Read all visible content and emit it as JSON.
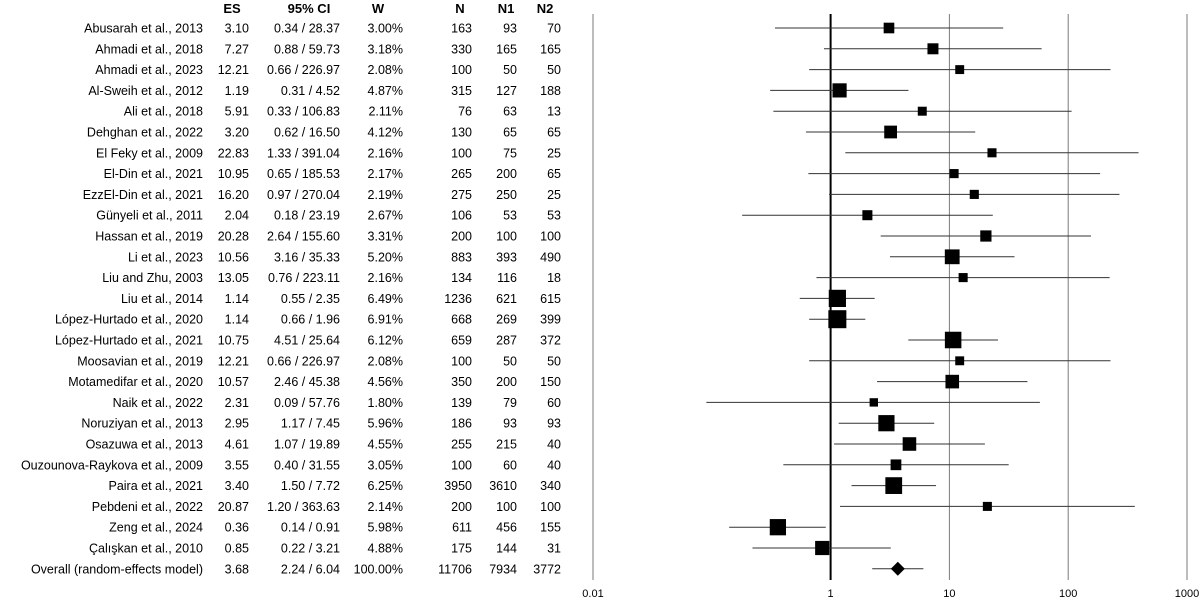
{
  "columns": {
    "es": "ES",
    "ci": "95% CI",
    "w": "W",
    "n": "N",
    "n1": "N1",
    "n2": "N2"
  },
  "chart_data": {
    "type": "forest",
    "x_scale": "log",
    "xlim": [
      0.01,
      1000
    ],
    "x_ticks": [
      0.01,
      1,
      10,
      100,
      1000
    ],
    "x_tick_labels": [
      "0.01",
      "1",
      "10",
      "100",
      "1000"
    ],
    "reference_line": 1,
    "grid": true,
    "studies": [
      {
        "label": "Abusarah et al., 2013",
        "es": 3.1,
        "lo": 0.34,
        "hi": 28.37,
        "es_text": "3.10",
        "ci_text": "0.34 / 28.37",
        "w": "3.00%",
        "n": "163",
        "n1": "93",
        "n2": "70"
      },
      {
        "label": "Ahmadi et al., 2018",
        "es": 7.27,
        "lo": 0.88,
        "hi": 59.73,
        "es_text": "7.27",
        "ci_text": "0.88 / 59.73",
        "w": "3.18%",
        "n": "330",
        "n1": "165",
        "n2": "165"
      },
      {
        "label": "Ahmadi et al., 2023",
        "es": 12.21,
        "lo": 0.66,
        "hi": 226.97,
        "es_text": "12.21",
        "ci_text": "0.66 / 226.97",
        "w": "2.08%",
        "n": "100",
        "n1": "50",
        "n2": "50"
      },
      {
        "label": "Al-Sweih et al., 2012",
        "es": 1.19,
        "lo": 0.31,
        "hi": 4.52,
        "es_text": "1.19",
        "ci_text": "0.31 / 4.52",
        "w": "4.87%",
        "n": "315",
        "n1": "127",
        "n2": "188"
      },
      {
        "label": "Ali et al., 2018",
        "es": 5.91,
        "lo": 0.33,
        "hi": 106.83,
        "es_text": "5.91",
        "ci_text": "0.33 / 106.83",
        "w": "2.11%",
        "n": "76",
        "n1": "63",
        "n2": "13"
      },
      {
        "label": "Dehghan et al., 2022",
        "es": 3.2,
        "lo": 0.62,
        "hi": 16.5,
        "es_text": "3.20",
        "ci_text": "0.62 / 16.50",
        "w": "4.12%",
        "n": "130",
        "n1": "65",
        "n2": "65"
      },
      {
        "label": "El Feky et al., 2009",
        "es": 22.83,
        "lo": 1.33,
        "hi": 391.04,
        "es_text": "22.83",
        "ci_text": "1.33 / 391.04",
        "w": "2.16%",
        "n": "100",
        "n1": "75",
        "n2": "25"
      },
      {
        "label": "El-Din et al., 2021",
        "es": 10.95,
        "lo": 0.65,
        "hi": 185.53,
        "es_text": "10.95",
        "ci_text": "0.65 / 185.53",
        "w": "2.17%",
        "n": "265",
        "n1": "200",
        "n2": "65"
      },
      {
        "label": "EzzEl-Din et al., 2021",
        "es": 16.2,
        "lo": 0.97,
        "hi": 270.04,
        "es_text": "16.20",
        "ci_text": "0.97 / 270.04",
        "w": "2.19%",
        "n": "275",
        "n1": "250",
        "n2": "25"
      },
      {
        "label": "Günyeli et al., 2011",
        "es": 2.04,
        "lo": 0.18,
        "hi": 23.19,
        "es_text": "2.04",
        "ci_text": "0.18 / 23.19",
        "w": "2.67%",
        "n": "106",
        "n1": "53",
        "n2": "53"
      },
      {
        "label": "Hassan et al., 2019",
        "es": 20.28,
        "lo": 2.64,
        "hi": 155.6,
        "es_text": "20.28",
        "ci_text": "2.64 / 155.60",
        "w": "3.31%",
        "n": "200",
        "n1": "100",
        "n2": "100"
      },
      {
        "label": "Li et al., 2023",
        "es": 10.56,
        "lo": 3.16,
        "hi": 35.33,
        "es_text": "10.56",
        "ci_text": "3.16 / 35.33",
        "w": "5.20%",
        "n": "883",
        "n1": "393",
        "n2": "490"
      },
      {
        "label": "Liu and Zhu, 2003",
        "es": 13.05,
        "lo": 0.76,
        "hi": 223.11,
        "es_text": "13.05",
        "ci_text": "0.76 / 223.11",
        "w": "2.16%",
        "n": "134",
        "n1": "116",
        "n2": "18"
      },
      {
        "label": "Liu et al., 2014",
        "es": 1.14,
        "lo": 0.55,
        "hi": 2.35,
        "es_text": "1.14",
        "ci_text": "0.55 / 2.35",
        "w": "6.49%",
        "n": "1236",
        "n1": "621",
        "n2": "615"
      },
      {
        "label": "López-Hurtado et al., 2020",
        "es": 1.14,
        "lo": 0.66,
        "hi": 1.96,
        "es_text": "1.14",
        "ci_text": "0.66 / 1.96",
        "w": "6.91%",
        "n": "668",
        "n1": "269",
        "n2": "399"
      },
      {
        "label": "López-Hurtado et al., 2021",
        "es": 10.75,
        "lo": 4.51,
        "hi": 25.64,
        "es_text": "10.75",
        "ci_text": "4.51 / 25.64",
        "w": "6.12%",
        "n": "659",
        "n1": "287",
        "n2": "372"
      },
      {
        "label": "Moosavian et al., 2019",
        "es": 12.21,
        "lo": 0.66,
        "hi": 226.97,
        "es_text": "12.21",
        "ci_text": "0.66 / 226.97",
        "w": "2.08%",
        "n": "100",
        "n1": "50",
        "n2": "50"
      },
      {
        "label": "Motamedifar et al., 2020",
        "es": 10.57,
        "lo": 2.46,
        "hi": 45.38,
        "es_text": "10.57",
        "ci_text": "2.46 / 45.38",
        "w": "4.56%",
        "n": "350",
        "n1": "200",
        "n2": "150"
      },
      {
        "label": "Naik et al., 2022",
        "es": 2.31,
        "lo": 0.09,
        "hi": 57.76,
        "es_text": "2.31",
        "ci_text": "0.09 / 57.76",
        "w": "1.80%",
        "n": "139",
        "n1": "79",
        "n2": "60"
      },
      {
        "label": "Noruziyan et al., 2013",
        "es": 2.95,
        "lo": 1.17,
        "hi": 7.45,
        "es_text": "2.95",
        "ci_text": "1.17 / 7.45",
        "w": "5.96%",
        "n": "186",
        "n1": "93",
        "n2": "93"
      },
      {
        "label": "Osazuwa et al., 2013",
        "es": 4.61,
        "lo": 1.07,
        "hi": 19.89,
        "es_text": "4.61",
        "ci_text": "1.07 / 19.89",
        "w": "4.55%",
        "n": "255",
        "n1": "215",
        "n2": "40"
      },
      {
        "label": "Ouzounova-Raykova et al., 2009",
        "es": 3.55,
        "lo": 0.4,
        "hi": 31.55,
        "es_text": "3.55",
        "ci_text": "0.40 / 31.55",
        "w": "3.05%",
        "n": "100",
        "n1": "60",
        "n2": "40"
      },
      {
        "label": "Paira et al., 2021",
        "es": 3.4,
        "lo": 1.5,
        "hi": 7.72,
        "es_text": "3.40",
        "ci_text": "1.50 / 7.72",
        "w": "6.25%",
        "n": "3950",
        "n1": "3610",
        "n2": "340"
      },
      {
        "label": "Pebdeni et al., 2022",
        "es": 20.87,
        "lo": 1.2,
        "hi": 363.63,
        "es_text": "20.87",
        "ci_text": "1.20 / 363.63",
        "w": "2.14%",
        "n": "200",
        "n1": "100",
        "n2": "100"
      },
      {
        "label": "Zeng et al., 2024",
        "es": 0.36,
        "lo": 0.14,
        "hi": 0.91,
        "es_text": "0.36",
        "ci_text": "0.14 / 0.91",
        "w": "5.98%",
        "n": "611",
        "n1": "456",
        "n2": "155"
      },
      {
        "label": "Çalışkan et al., 2010",
        "es": 0.85,
        "lo": 0.22,
        "hi": 3.21,
        "es_text": "0.85",
        "ci_text": "0.22 / 3.21",
        "w": "4.88%",
        "n": "175",
        "n1": "144",
        "n2": "31"
      }
    ],
    "overall": {
      "label": "Overall (random-effects model)",
      "es": 3.68,
      "lo": 2.24,
      "hi": 6.04,
      "es_text": "3.68",
      "ci_text": "2.24 / 6.04",
      "w": "100.00%",
      "n": "11706",
      "n1": "7934",
      "n2": "3772"
    }
  }
}
